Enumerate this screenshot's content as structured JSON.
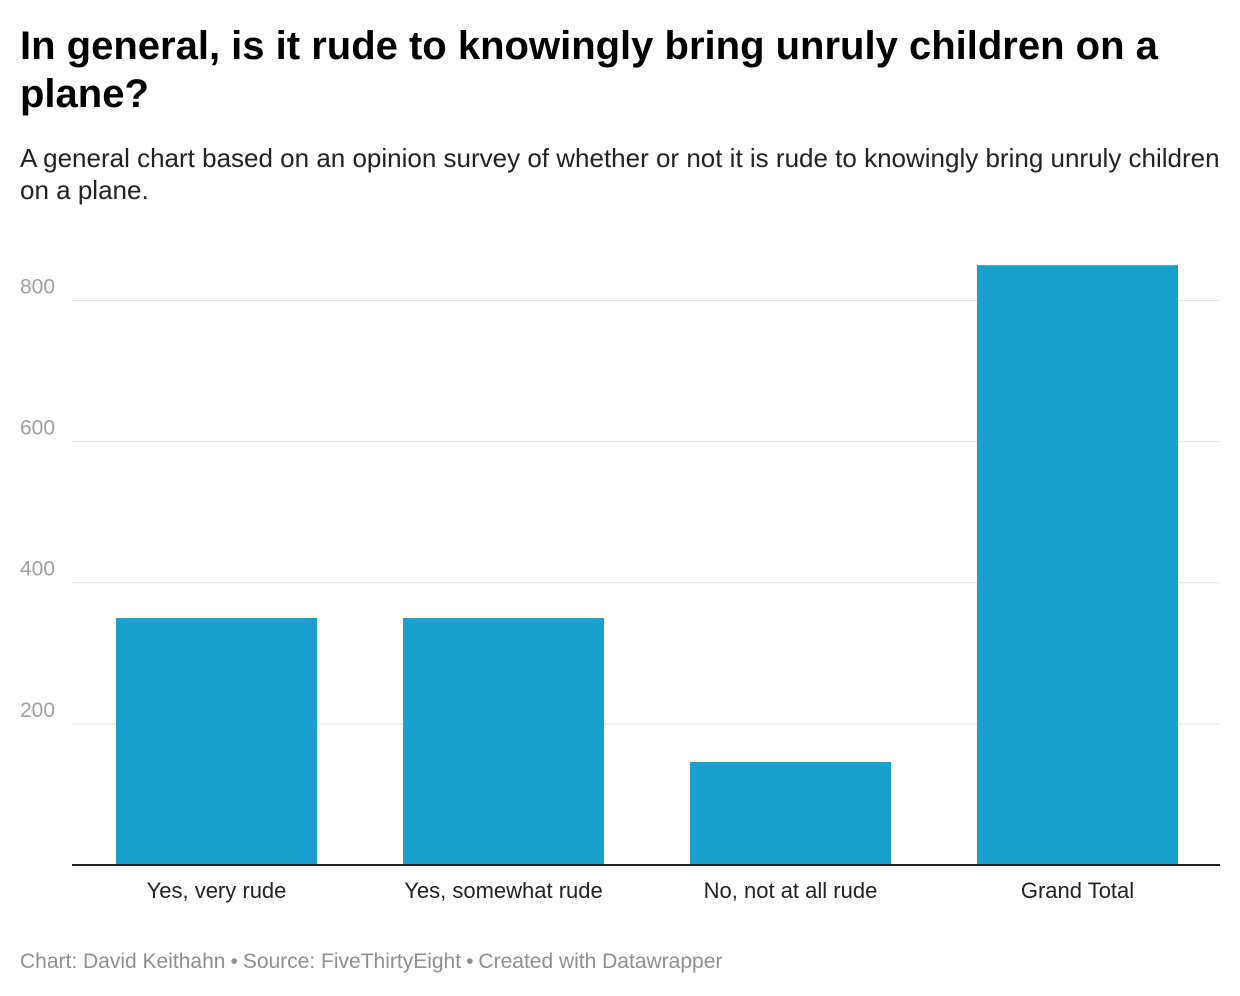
{
  "header": {
    "title": "In general, is it rude to knowingly bring unruly children on a plane?",
    "subtitle": "A general chart based on an opinion survey of whether or not it is rude to knowingly bring unruly children on a plane."
  },
  "footer": {
    "chart_credit": "Chart: David Keithahn",
    "source": "Source: FiveThirtyEight",
    "created_with": "Created with Datawrapper",
    "separator": "•"
  },
  "colors": {
    "bar": "#1aa0cc",
    "grid": "#e2e2e2",
    "baseline": "#222222"
  },
  "chart_data": {
    "type": "bar",
    "categories": [
      "Yes, very rude",
      "Yes, somewhat rude",
      "No, not at all rude",
      "Grand Total"
    ],
    "values": [
      350,
      350,
      146,
      850
    ],
    "title": "In general, is it rude to knowingly bring unruly children on a plane?",
    "subtitle": "A general chart based on an opinion survey of whether or not it is rude to knowingly bring unruly children on a plane.",
    "xlabel": "",
    "ylabel": "",
    "ylim": [
      0,
      850
    ],
    "yticks": [
      200,
      400,
      600,
      800
    ],
    "grid": true,
    "legend": "none"
  }
}
